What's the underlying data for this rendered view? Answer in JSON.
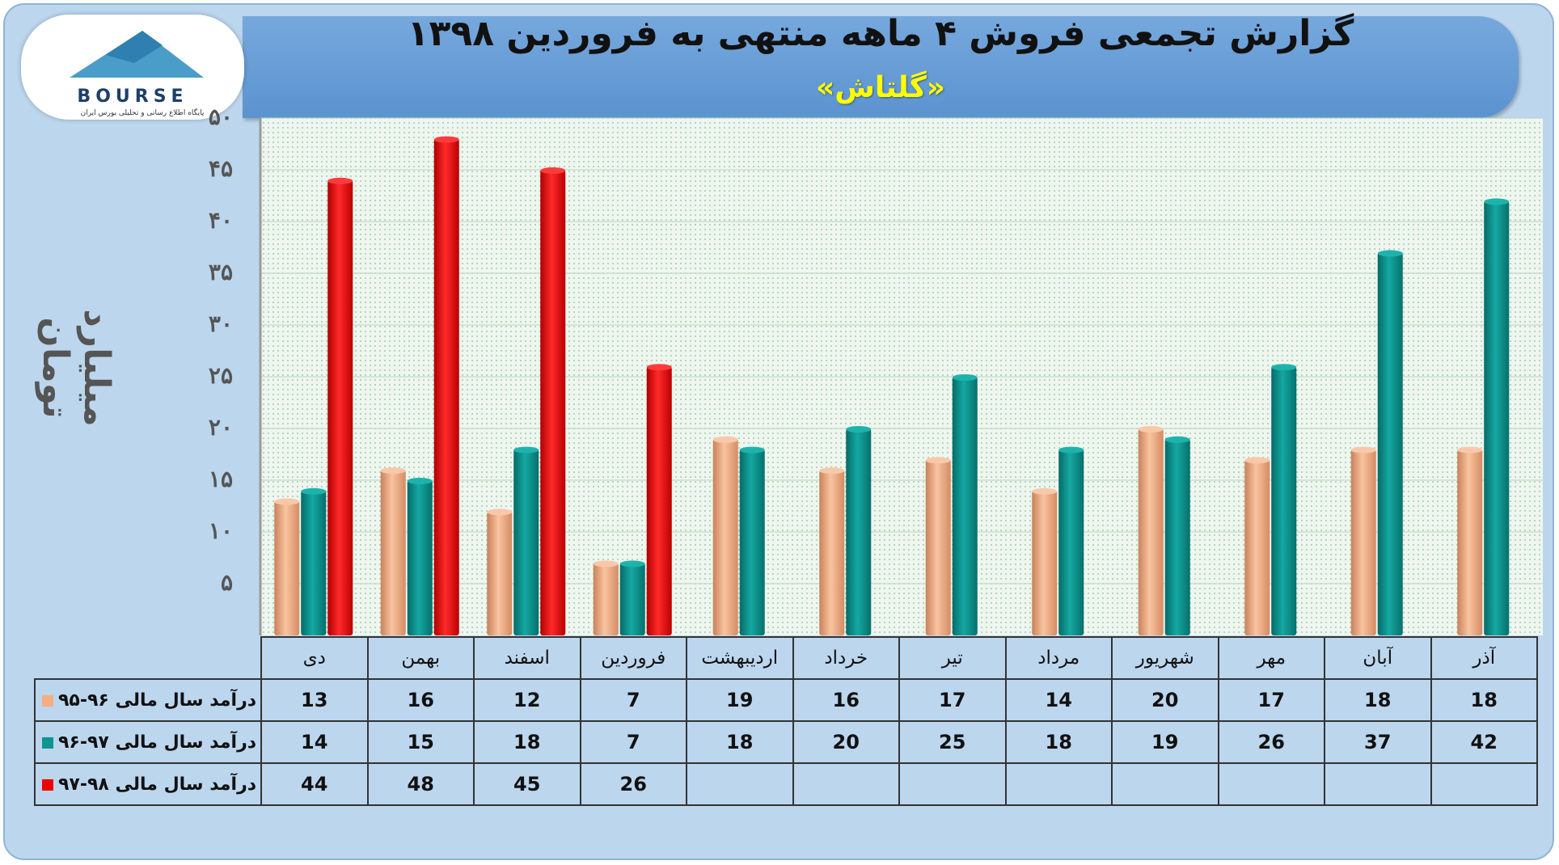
{
  "header": {
    "title": "گزارش تجمعی فروش ۴ ماهه منتهی به فروردین ۱۳۹۸",
    "subtitle": "«گلتاش»",
    "logo_text": "BOURSE",
    "logo_caption": "پایگاه اطلاع رسانی و تحلیلی بورس ایران"
  },
  "colors": {
    "series_95_96": "#f4ae80",
    "series_96_97": "#0e9590",
    "series_97_98": "#ee0000",
    "plot_bg": "#e9f3ea",
    "frame": "#bcd6ee"
  },
  "chart_data": {
    "type": "bar",
    "ylabel": "میلیارد تومان",
    "ylim": [
      0,
      50
    ],
    "yticks": [
      "۵",
      "۱۰",
      "۱۵",
      "۲۰",
      "۲۵",
      "۳۰",
      "۳۵",
      "۴۰",
      "۴۵",
      "۵۰"
    ],
    "categories": [
      "دی",
      "بهمن",
      "اسفند",
      "فروردین",
      "اردیبهشت",
      "خرداد",
      "تیر",
      "مرداد",
      "شهریور",
      "مهر",
      "آبان",
      "آذر"
    ],
    "series": [
      {
        "name": "درآمد سال مالی ۹۶-۹۵",
        "values": [
          13,
          16,
          12,
          7,
          19,
          16,
          17,
          14,
          20,
          17,
          18,
          18
        ]
      },
      {
        "name": "درآمد سال مالی ۹۷-۹۶",
        "values": [
          14,
          15,
          18,
          7,
          18,
          20,
          25,
          18,
          19,
          26,
          37,
          42
        ]
      },
      {
        "name": "درآمد سال مالی ۹۸-۹۷",
        "values": [
          44,
          48,
          45,
          26,
          null,
          null,
          null,
          null,
          null,
          null,
          null,
          null
        ]
      }
    ],
    "legend": "table-left"
  }
}
